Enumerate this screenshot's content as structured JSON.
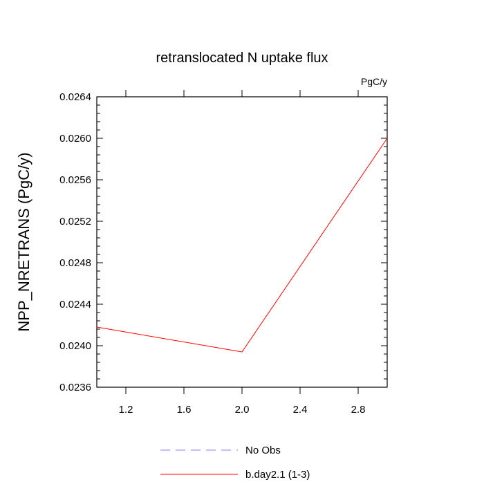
{
  "chart_data": {
    "type": "line",
    "title": "retranslocated N uptake flux",
    "units_label": "PgC/y",
    "ylabel": "NPP_NRETRANS  (PgC/y)",
    "xlabel": "",
    "xlim": [
      1.0,
      3.0
    ],
    "ylim": [
      0.0236,
      0.0264
    ],
    "x_ticks": [
      1.2,
      1.6,
      2.0,
      2.4,
      2.8
    ],
    "x_tick_labels": [
      "1.2",
      "1.6",
      "2.0",
      "2.4",
      "2.8"
    ],
    "y_ticks": [
      0.0236,
      0.024,
      0.0244,
      0.0248,
      0.0252,
      0.0256,
      0.026,
      0.0264
    ],
    "y_tick_labels": [
      "0.0236",
      "0.0240",
      "0.0244",
      "0.0248",
      "0.0252",
      "0.0256",
      "0.0260",
      "0.0264"
    ],
    "grid": false,
    "legend_position": "bottom",
    "series": [
      {
        "name": "No Obs",
        "color": "#8080ff",
        "dash": "dashed",
        "x": [],
        "y": []
      },
      {
        "name": "b.day2.1 (1-3)",
        "color": "#ff0000",
        "dash": "solid",
        "x": [
          1.0,
          2.0,
          3.0
        ],
        "y": [
          0.02418,
          0.02394,
          0.026
        ]
      }
    ]
  }
}
